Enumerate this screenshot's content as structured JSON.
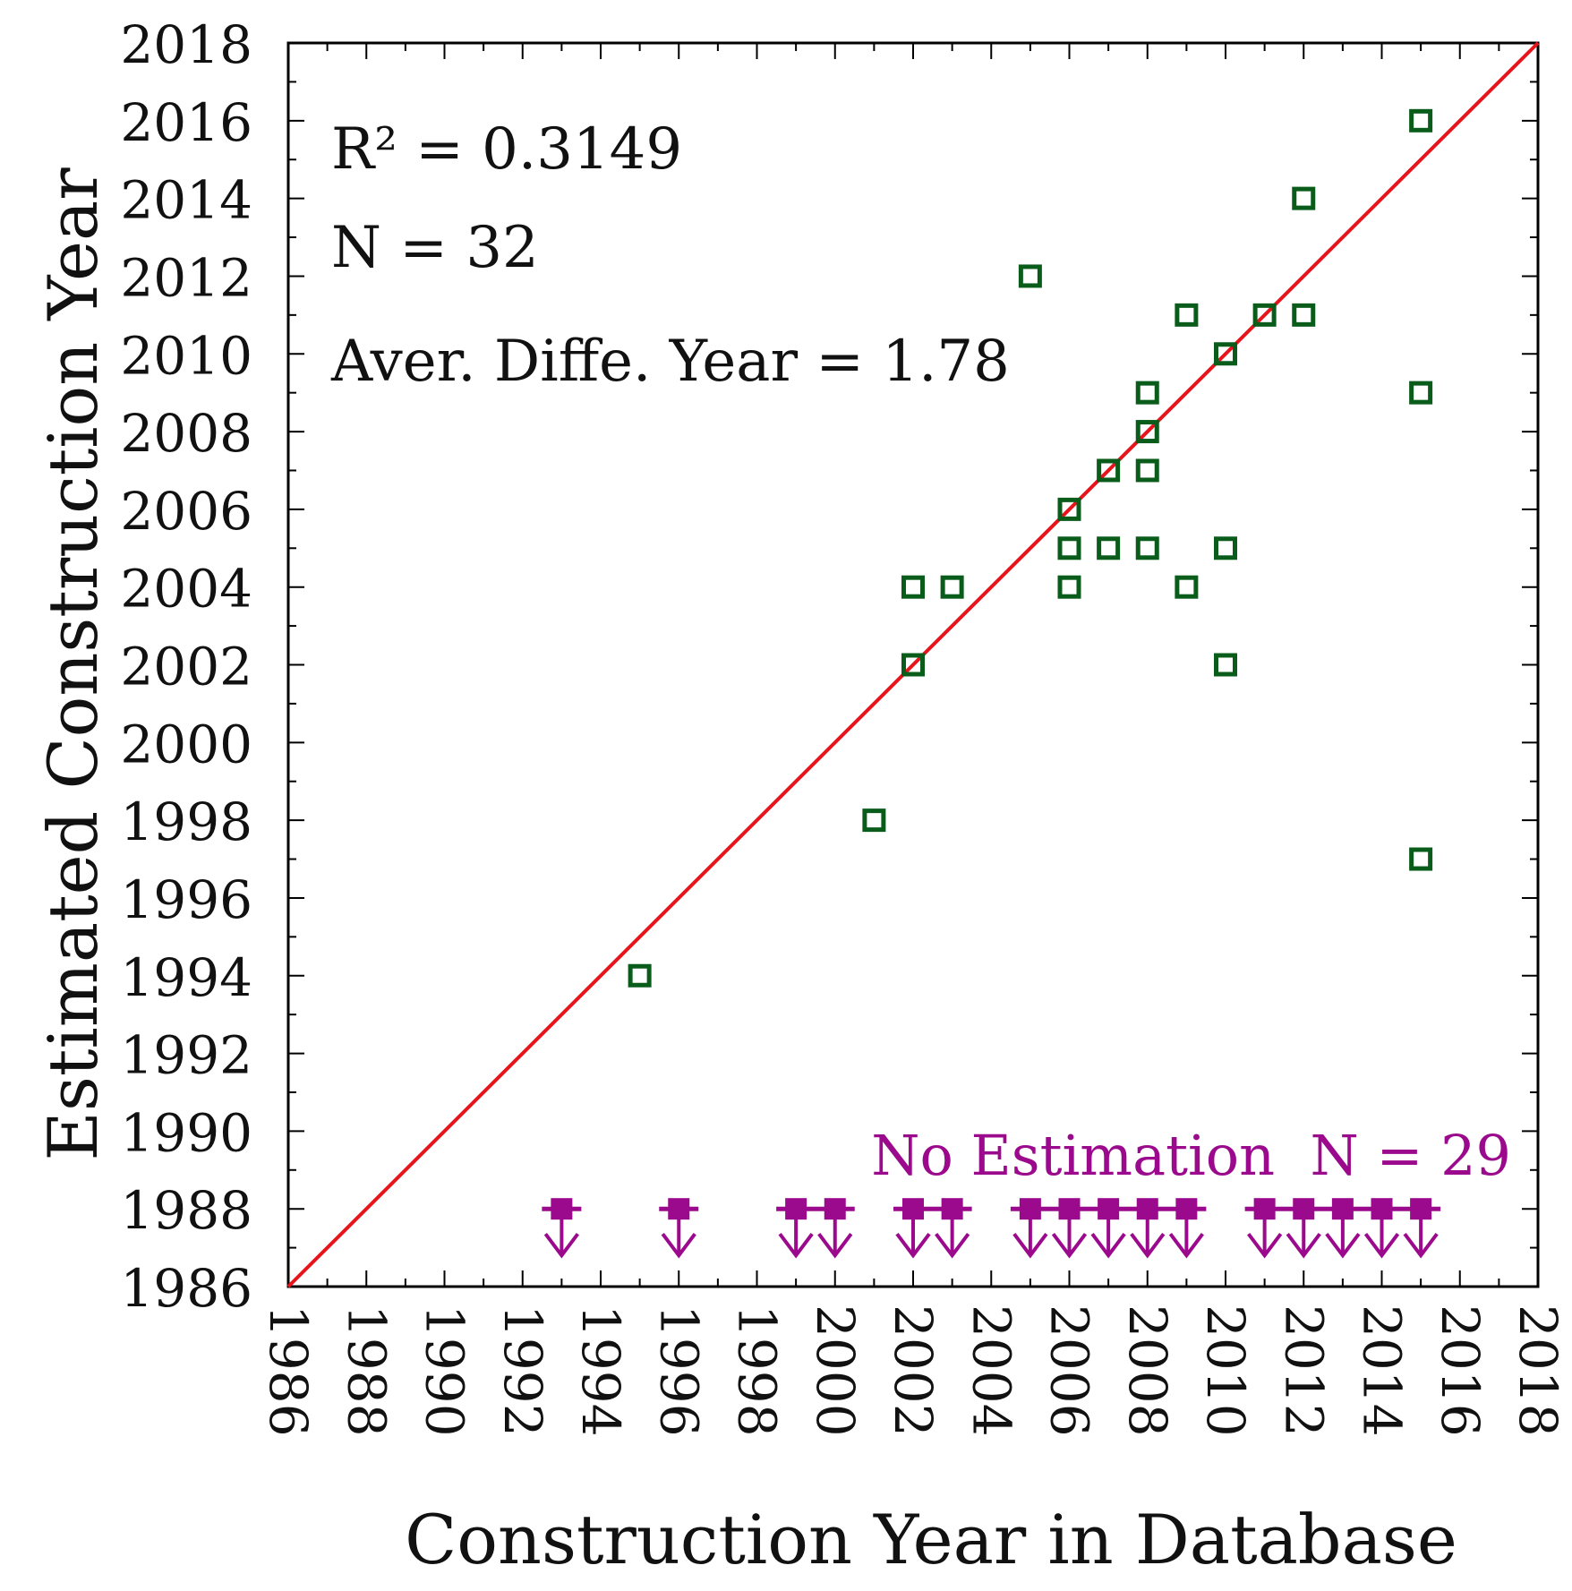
{
  "chart_data": {
    "type": "scatter",
    "title": "",
    "xlabel": "Construction Year in Database",
    "ylabel": "Estimated Construction Year",
    "xlim": [
      1986,
      2018
    ],
    "ylim": [
      1986,
      2018
    ],
    "x_ticks": [
      1986,
      1988,
      1990,
      1992,
      1994,
      1996,
      1998,
      2000,
      2002,
      2004,
      2006,
      2008,
      2010,
      2012,
      2014,
      2016,
      2018
    ],
    "y_ticks": [
      1986,
      1988,
      1990,
      1992,
      1994,
      1996,
      1998,
      2000,
      2002,
      2004,
      2006,
      2008,
      2010,
      2012,
      2014,
      2016,
      2018
    ],
    "x_tick_labels": [
      "1986",
      "1988",
      "1990",
      "1992",
      "1994",
      "1996",
      "1998",
      "2000",
      "2002",
      "2004",
      "2006",
      "2008",
      "2010",
      "2012",
      "2014",
      "2016",
      "2018"
    ],
    "y_tick_labels": [
      "1986",
      "1988",
      "1990",
      "1992",
      "1994",
      "1996",
      "1998",
      "2000",
      "2002",
      "2004",
      "2006",
      "2008",
      "2010",
      "2012",
      "2014",
      "2016",
      "2018"
    ],
    "grid": false,
    "annotations": {
      "r2": "R² = 0.3149",
      "n": "N = 32",
      "avg_diff": "Aver. Diffe. Year = 1.78",
      "no_estimation": "No Estimation  N = 29"
    },
    "reference_line": {
      "name": "1:1 line",
      "from": [
        1986,
        1986
      ],
      "to": [
        2018,
        2018
      ],
      "color": "#e8141b"
    },
    "series": [
      {
        "name": "Estimated",
        "marker": "hollow-square",
        "color": "#0a5c1a",
        "points": [
          {
            "x": 1995,
            "y": 1994
          },
          {
            "x": 2001,
            "y": 1998
          },
          {
            "x": 2002,
            "y": 2002
          },
          {
            "x": 2002,
            "y": 2004
          },
          {
            "x": 2003,
            "y": 2004
          },
          {
            "x": 2005,
            "y": 2012
          },
          {
            "x": 2006,
            "y": 2006
          },
          {
            "x": 2006,
            "y": 2005
          },
          {
            "x": 2006,
            "y": 2004
          },
          {
            "x": 2007,
            "y": 2007
          },
          {
            "x": 2007,
            "y": 2005
          },
          {
            "x": 2008,
            "y": 2009
          },
          {
            "x": 2008,
            "y": 2008
          },
          {
            "x": 2008,
            "y": 2007
          },
          {
            "x": 2008,
            "y": 2005
          },
          {
            "x": 2009,
            "y": 2011
          },
          {
            "x": 2009,
            "y": 2004
          },
          {
            "x": 2010,
            "y": 2010
          },
          {
            "x": 2010,
            "y": 2005
          },
          {
            "x": 2010,
            "y": 2002
          },
          {
            "x": 2011,
            "y": 2011
          },
          {
            "x": 2012,
            "y": 2014
          },
          {
            "x": 2012,
            "y": 2011
          },
          {
            "x": 2015,
            "y": 2016
          },
          {
            "x": 2015,
            "y": 2009
          },
          {
            "x": 2015,
            "y": 1997
          }
        ]
      },
      {
        "name": "No Estimation",
        "marker": "filled-square-down-arrow",
        "color": "#9b0a8c",
        "y": 1988,
        "x": [
          1993,
          1996,
          1999,
          2000,
          2002,
          2003,
          2005,
          2006,
          2007,
          2008,
          2009,
          2011,
          2012,
          2013,
          2014,
          2015
        ]
      }
    ]
  }
}
